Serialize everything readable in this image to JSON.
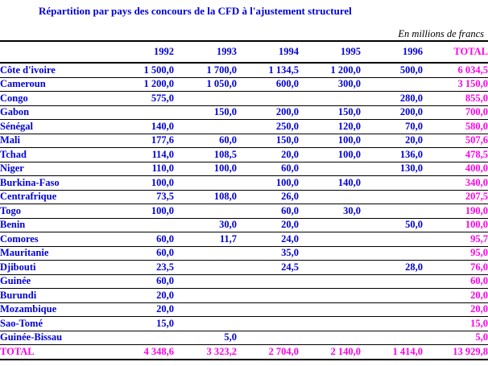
{
  "title": "Répartition par pays des concours de la CFD à l'ajustement structurel",
  "unit_note": "En millions de francs",
  "colors": {
    "text_blue": "#0000d6",
    "accent_magenta": "#ff00e6",
    "rule_black": "#000000",
    "background": "#ffffff"
  },
  "table": {
    "columns": [
      "1992",
      "1993",
      "1994",
      "1995",
      "1996",
      "TOTAL"
    ],
    "rows": [
      {
        "country": "Côte d'ivoire",
        "values": [
          "1 500,0",
          "1 700,0",
          "1 134,5",
          "1 200,0",
          "500,0",
          "6 034,5"
        ]
      },
      {
        "country": "Cameroun",
        "values": [
          "1 200,0",
          "1 050,0",
          "600,0",
          "300,0",
          "",
          "3 150,0"
        ]
      },
      {
        "country": "Congo",
        "values": [
          "575,0",
          "",
          "",
          "",
          "280,0",
          "855,0"
        ]
      },
      {
        "country": "Gabon",
        "values": [
          "",
          "150,0",
          "200,0",
          "150,0",
          "200,0",
          "700,0"
        ]
      },
      {
        "country": "Sénégal",
        "values": [
          "140,0",
          "",
          "250,0",
          "120,0",
          "70,0",
          "580,0"
        ]
      },
      {
        "country": "Mali",
        "values": [
          "177,6",
          "60,0",
          "150,0",
          "100,0",
          "20,0",
          "507,6"
        ]
      },
      {
        "country": "Tchad",
        "values": [
          "114,0",
          "108,5",
          "20,0",
          "100,0",
          "136,0",
          "478,5"
        ]
      },
      {
        "country": "Niger",
        "values": [
          "110,0",
          "100,0",
          "60,0",
          "",
          "130,0",
          "400,0"
        ]
      },
      {
        "country": "Burkina-Faso",
        "values": [
          "100,0",
          "",
          "100,0",
          "140,0",
          "",
          "340,0"
        ]
      },
      {
        "country": "Centrafrique",
        "values": [
          "73,5",
          "108,0",
          "26,0",
          "",
          "",
          "207,5"
        ]
      },
      {
        "country": "Togo",
        "values": [
          "100,0",
          "",
          "60,0",
          "30,0",
          "",
          "190,0"
        ]
      },
      {
        "country": "Benin",
        "values": [
          "",
          "30,0",
          "20,0",
          "",
          "50,0",
          "100,0"
        ]
      },
      {
        "country": "Comores",
        "values": [
          "60,0",
          "11,7",
          "24,0",
          "",
          "",
          "95,7"
        ]
      },
      {
        "country": "Mauritanie",
        "values": [
          "60,0",
          "",
          "35,0",
          "",
          "",
          "95,0"
        ]
      },
      {
        "country": "Djibouti",
        "values": [
          "23,5",
          "",
          "24,5",
          "",
          "28,0",
          "76,0"
        ]
      },
      {
        "country": "Guinée",
        "values": [
          "60,0",
          "",
          "",
          "",
          "",
          "60,0"
        ]
      },
      {
        "country": "Burundi",
        "values": [
          "20,0",
          "",
          "",
          "",
          "",
          "20,0"
        ]
      },
      {
        "country": "Mozambique",
        "values": [
          "20,0",
          "",
          "",
          "",
          "",
          "20,0"
        ]
      },
      {
        "country": "Sao-Tomé",
        "values": [
          "15,0",
          "",
          "",
          "",
          "",
          "15,0"
        ]
      },
      {
        "country": "Guinée-Bissau",
        "values": [
          "",
          "5,0",
          "",
          "",
          "",
          "5,0"
        ]
      }
    ],
    "total_row": {
      "label": "TOTAL",
      "values": [
        "4 348,6",
        "3 323,2",
        "2 704,0",
        "2 140,0",
        "1 414,0",
        "13 929,8"
      ]
    }
  }
}
